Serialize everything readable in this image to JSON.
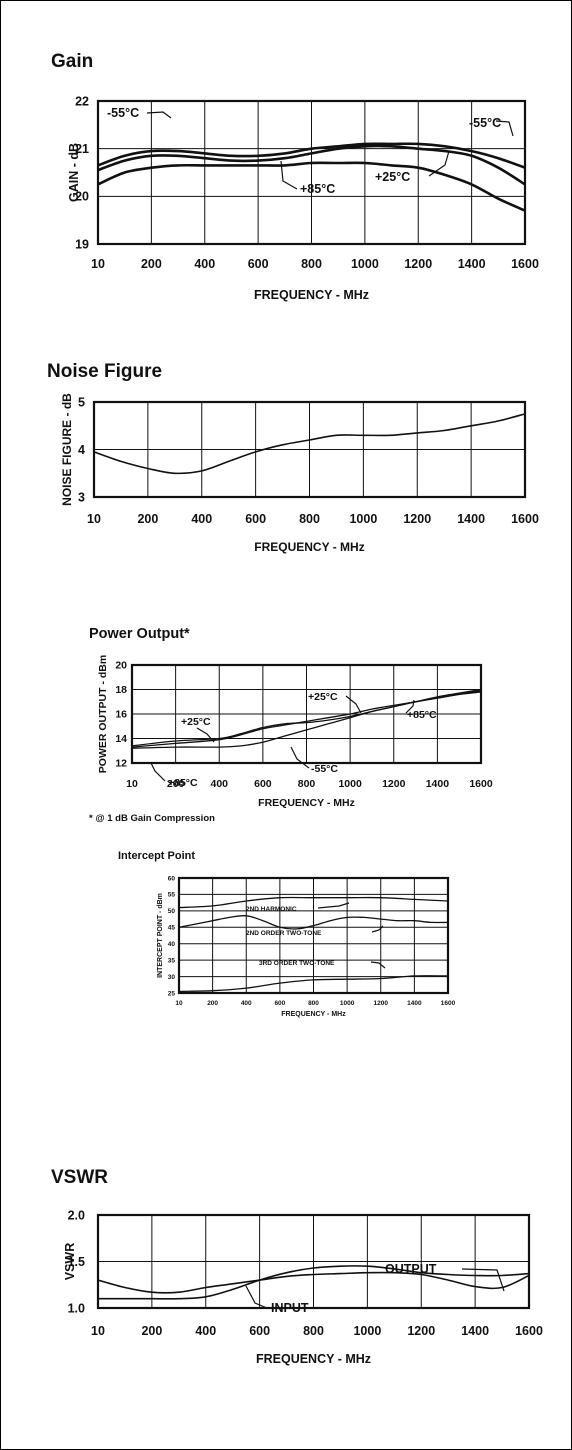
{
  "chart_data": [
    {
      "type": "line",
      "title": "Gain",
      "xlabel": "FREQUENCY - MHz",
      "ylabel": "GAIN - dB",
      "xlim": [
        0,
        1600
      ],
      "ylim": [
        19,
        22
      ],
      "x_ticks": [
        "10",
        "200",
        "400",
        "600",
        "800",
        "1000",
        "1200",
        "1400",
        "1600"
      ],
      "y_ticks": [
        "19",
        "20",
        "21",
        "22"
      ],
      "grid": true,
      "series": [
        {
          "name": "-55°C",
          "x": [
            0,
            100,
            200,
            300,
            400,
            500,
            600,
            700,
            800,
            900,
            1000,
            1100,
            1200,
            1300,
            1400,
            1500,
            1600
          ],
          "y": [
            20.65,
            20.85,
            20.95,
            20.95,
            20.9,
            20.85,
            20.85,
            20.9,
            21.0,
            21.05,
            21.1,
            21.1,
            21.1,
            21.05,
            20.95,
            20.8,
            20.6
          ]
        },
        {
          "name": "+25°C",
          "x": [
            0,
            100,
            200,
            300,
            400,
            500,
            600,
            700,
            800,
            900,
            1000,
            1100,
            1200,
            1300,
            1400,
            1500,
            1600
          ],
          "y": [
            20.55,
            20.75,
            20.85,
            20.85,
            20.8,
            20.75,
            20.75,
            20.8,
            20.9,
            21.0,
            21.05,
            21.05,
            21.0,
            20.95,
            20.85,
            20.6,
            20.25
          ]
        },
        {
          "name": "+85°C",
          "x": [
            0,
            100,
            200,
            300,
            400,
            500,
            600,
            700,
            800,
            900,
            1000,
            1100,
            1200,
            1300,
            1400,
            1500,
            1600
          ],
          "y": [
            20.25,
            20.5,
            20.6,
            20.65,
            20.65,
            20.65,
            20.65,
            20.65,
            20.7,
            20.7,
            20.7,
            20.65,
            20.6,
            20.45,
            20.25,
            19.95,
            19.7
          ]
        }
      ],
      "annotations": [
        "-55°C",
        "-55°C",
        "+85°C",
        "+25°C"
      ]
    },
    {
      "type": "line",
      "title": "Noise Figure",
      "xlabel": "FREQUENCY - MHz",
      "ylabel": "NOISE FIGURE - dB",
      "xlim": [
        0,
        1600
      ],
      "ylim": [
        3,
        5
      ],
      "x_ticks": [
        "10",
        "200",
        "400",
        "600",
        "800",
        "1000",
        "1200",
        "1400",
        "1600"
      ],
      "y_ticks": [
        "3",
        "4",
        "5"
      ],
      "grid": true,
      "series": [
        {
          "x": [
            0,
            100,
            200,
            300,
            400,
            500,
            600,
            700,
            800,
            900,
            1000,
            1100,
            1200,
            1300,
            1400,
            1500,
            1600
          ],
          "y": [
            3.95,
            3.75,
            3.6,
            3.5,
            3.55,
            3.75,
            3.95,
            4.1,
            4.2,
            4.3,
            4.3,
            4.3,
            4.35,
            4.4,
            4.5,
            4.6,
            4.75
          ]
        }
      ]
    },
    {
      "type": "line",
      "title": "Power Output*",
      "xlabel": "FREQUENCY - MHz",
      "ylabel": "POWER OUTPUT - dBm",
      "footnote": "* @ 1 dB Gain Compression",
      "xlim": [
        0,
        1600
      ],
      "ylim": [
        12,
        20
      ],
      "x_ticks": [
        "10",
        "200",
        "400",
        "600",
        "800",
        "1000",
        "1200",
        "1400",
        "1600"
      ],
      "y_ticks": [
        "12",
        "14",
        "16",
        "18",
        "20"
      ],
      "grid": true,
      "series": [
        {
          "name": "+25°C",
          "x": [
            0,
            200,
            400,
            500,
            600,
            700,
            800,
            900,
            1000,
            1100,
            1200,
            1300,
            1400,
            1500,
            1600
          ],
          "y": [
            13.3,
            13.6,
            13.9,
            14.3,
            14.8,
            15.1,
            15.4,
            15.7,
            16.0,
            16.4,
            16.7,
            17.0,
            17.3,
            17.6,
            17.9
          ]
        },
        {
          "name": "+85°C",
          "x": [
            0,
            200,
            400,
            500,
            600,
            700,
            800,
            900,
            1000,
            1100,
            1200,
            1300,
            1400,
            1500,
            1600
          ],
          "y": [
            13.4,
            13.8,
            14.0,
            14.4,
            14.9,
            15.2,
            15.3,
            15.5,
            15.8,
            16.2,
            16.6,
            17.0,
            17.3,
            17.6,
            17.8
          ]
        },
        {
          "name": "-55°C",
          "x": [
            0,
            200,
            400,
            500,
            600,
            700,
            800,
            900,
            1000,
            1100,
            1200,
            1300,
            1400,
            1500,
            1600
          ],
          "y": [
            13.2,
            13.3,
            13.3,
            13.4,
            13.7,
            14.2,
            14.7,
            15.2,
            15.7,
            16.2,
            16.6,
            17.0,
            17.4,
            17.7,
            18.0
          ]
        }
      ],
      "annotations": [
        "+25°C",
        "+25°C",
        "+85°C",
        "+85°C",
        "-55°C"
      ]
    },
    {
      "type": "line",
      "title": "Intercept Point",
      "xlabel": "FREQUENCY - MHz",
      "ylabel": "INTERCEPT POINT - dBm",
      "xlim": [
        0,
        1600
      ],
      "ylim": [
        25,
        60
      ],
      "x_ticks": [
        "10",
        "200",
        "400",
        "600",
        "800",
        "1000",
        "1200",
        "1400",
        "1600"
      ],
      "y_ticks": [
        "25",
        "30",
        "35",
        "40",
        "45",
        "50",
        "55",
        "60"
      ],
      "grid": true,
      "series": [
        {
          "name": "2ND HARMONIC",
          "x": [
            0,
            200,
            400,
            600,
            800,
            1000,
            1200,
            1400,
            1600
          ],
          "y": [
            51,
            51.5,
            53,
            54,
            54,
            54,
            54,
            53.5,
            53
          ]
        },
        {
          "name": "2ND ORDER TWO-TONE",
          "x": [
            0,
            100,
            200,
            300,
            400,
            500,
            600,
            700,
            800,
            900,
            1000,
            1100,
            1200,
            1300,
            1400,
            1500,
            1600
          ],
          "y": [
            45,
            46,
            47,
            48,
            48.5,
            47,
            45,
            44.5,
            45.5,
            47,
            48,
            48,
            47.5,
            47,
            47,
            46.5,
            46.5
          ]
        },
        {
          "name": "3RD ORDER TWO-TONE",
          "x": [
            0,
            200,
            400,
            600,
            800,
            1000,
            1200,
            1400,
            1600
          ],
          "y": [
            25.5,
            25.7,
            26.5,
            28,
            29,
            29.2,
            29.4,
            30.2,
            30.2
          ]
        }
      ],
      "annotations": [
        "2ND HARMONIC",
        "2ND ORDER TWO-TONE",
        "3RD ORDER TWO-TONE"
      ]
    },
    {
      "type": "line",
      "title": "VSWR",
      "xlabel": "FREQUENCY - MHz",
      "ylabel": "VSWR",
      "xlim": [
        0,
        1600
      ],
      "ylim": [
        1.0,
        2.0
      ],
      "x_ticks": [
        "10",
        "200",
        "400",
        "600",
        "800",
        "1000",
        "1200",
        "1400",
        "1600"
      ],
      "y_ticks": [
        "1.0",
        "1.5",
        "2.0"
      ],
      "grid": true,
      "series": [
        {
          "name": "OUTPUT",
          "x": [
            0,
            100,
            200,
            300,
            400,
            500,
            600,
            700,
            800,
            900,
            1000,
            1100,
            1200,
            1300,
            1400,
            1500,
            1600
          ],
          "y": [
            1.3,
            1.22,
            1.17,
            1.17,
            1.22,
            1.26,
            1.3,
            1.34,
            1.36,
            1.37,
            1.38,
            1.38,
            1.36,
            1.3,
            1.23,
            1.22,
            1.35
          ]
        },
        {
          "name": "INPUT",
          "x": [
            0,
            100,
            200,
            300,
            400,
            500,
            600,
            700,
            800,
            900,
            1000,
            1100,
            1200,
            1300,
            1400,
            1500,
            1600
          ],
          "y": [
            1.1,
            1.1,
            1.1,
            1.1,
            1.12,
            1.2,
            1.3,
            1.38,
            1.43,
            1.45,
            1.45,
            1.42,
            1.38,
            1.36,
            1.35,
            1.35,
            1.37
          ]
        }
      ],
      "annotations": [
        "OUTPUT",
        "INPUT"
      ]
    }
  ]
}
